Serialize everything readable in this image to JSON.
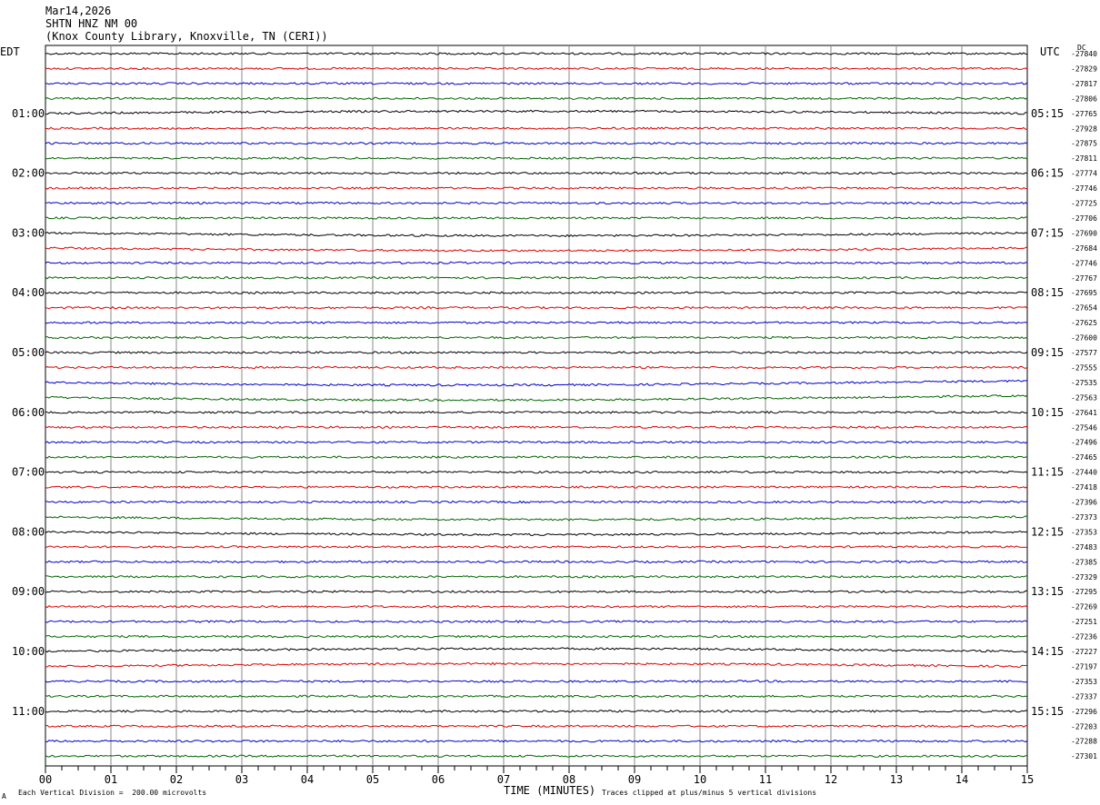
{
  "chart_data": {
    "type": "line",
    "title": "Mar14,2026",
    "station": "SHTN HNZ NM 00",
    "location": "(Knox County Library, Knoxville, TN (CERI))",
    "left_tz": "EDT",
    "right_tz": "UTC",
    "dc_label": "DC",
    "xlabel": "TIME (MINUTES)",
    "x_ticks": [
      "00",
      "01",
      "02",
      "03",
      "04",
      "05",
      "06",
      "07",
      "08",
      "09",
      "10",
      "11",
      "12",
      "13",
      "14",
      "15"
    ],
    "xlim": [
      0,
      15
    ],
    "left_hour_labels": [
      "01:00",
      "02:00",
      "03:00",
      "04:00",
      "05:00",
      "06:00",
      "07:00",
      "08:00",
      "09:00",
      "10:00",
      "11:00"
    ],
    "right_hour_labels": [
      "05:15",
      "06:15",
      "07:15",
      "08:15",
      "09:15",
      "10:15",
      "11:15",
      "12:15",
      "13:15",
      "14:15",
      "15:15"
    ],
    "dc_offsets": [
      "-27840",
      "-27829",
      "-27817",
      "-27806",
      "-27765",
      "-27928",
      "-27875",
      "-27811",
      "-27774",
      "-27746",
      "-27725",
      "-27706",
      "-27690",
      "-27684",
      "-27746",
      "-27767",
      "-27695",
      "-27654",
      "-27625",
      "-27600",
      "-27577",
      "-27555",
      "-27535",
      "-27563",
      "-27641",
      "-27546",
      "-27496",
      "-27465",
      "-27440",
      "-27418",
      "-27396",
      "-27373",
      "-27353",
      "-27483",
      "-27385",
      "-27329",
      "-27295",
      "-27269",
      "-27251",
      "-27236",
      "-27227",
      "-27197",
      "-27353",
      "-27337",
      "-27296",
      "-27203",
      "-27288",
      "-27301"
    ],
    "trace_colors": [
      "#000000",
      "#dd0000",
      "#0000cc",
      "#006600"
    ],
    "scale_note": "Each Vertical Division =  200.00 microvolts",
    "clip_note": "Traces clipped at plus/minus 5 vertical divisions",
    "corner_mark": "A"
  }
}
